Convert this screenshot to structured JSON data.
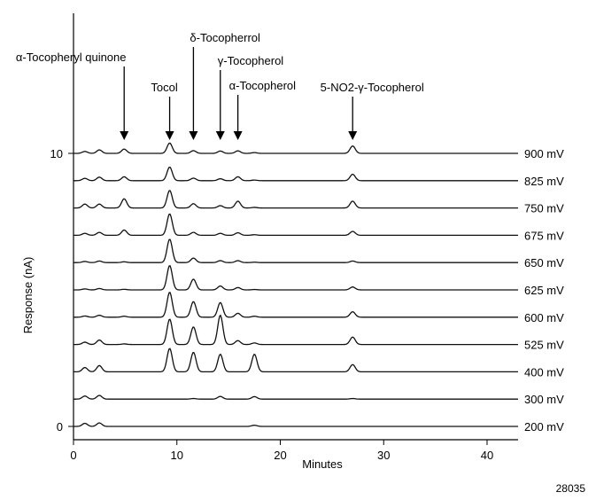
{
  "figure_id": "28035",
  "chart_data": {
    "type": "line",
    "xlabel": "Minutes",
    "ylabel": "Response (nA)",
    "xlim": [
      0,
      43
    ],
    "x_ticks": [
      0,
      10,
      20,
      30,
      40
    ],
    "y_tick_labels": [
      "10",
      "0"
    ],
    "grid": false,
    "traces": [
      {
        "name": "900 mV",
        "peaks": [
          [
            1.1,
            1.0
          ],
          [
            2.5,
            1.8
          ],
          [
            4.9,
            2.2
          ],
          [
            9.3,
            5.3
          ],
          [
            11.6,
            1.4
          ],
          [
            14.2,
            1.2
          ],
          [
            15.9,
            1.3
          ],
          [
            17.5,
            0.4
          ],
          [
            27.0,
            3.8
          ]
        ]
      },
      {
        "name": "825 mV",
        "peaks": [
          [
            1.1,
            1.2
          ],
          [
            2.5,
            1.8
          ],
          [
            4.9,
            2.0
          ],
          [
            9.3,
            7.0
          ],
          [
            11.6,
            1.3
          ],
          [
            14.2,
            1.0
          ],
          [
            15.9,
            2.0
          ],
          [
            17.5,
            0.3
          ],
          [
            27.0,
            3.3
          ]
        ]
      },
      {
        "name": "750 mV",
        "peaks": [
          [
            1.1,
            2.0
          ],
          [
            2.5,
            2.0
          ],
          [
            4.9,
            4.7
          ],
          [
            9.3,
            9.0
          ],
          [
            11.6,
            2.2
          ],
          [
            14.2,
            1.2
          ],
          [
            15.9,
            3.5
          ],
          [
            17.5,
            0.3
          ],
          [
            27.0,
            3.5
          ]
        ]
      },
      {
        "name": "675 mV",
        "peaks": [
          [
            1.1,
            1.0
          ],
          [
            2.5,
            1.5
          ],
          [
            4.9,
            2.7
          ],
          [
            9.3,
            11.0
          ],
          [
            11.6,
            1.5
          ],
          [
            14.2,
            1.0
          ],
          [
            15.9,
            1.3
          ],
          [
            17.5,
            0.3
          ],
          [
            27.0,
            2.0
          ]
        ]
      },
      {
        "name": "650 mV",
        "peaks": [
          [
            1.1,
            0.6
          ],
          [
            2.5,
            0.8
          ],
          [
            4.9,
            0.4
          ],
          [
            9.3,
            12.0
          ],
          [
            11.6,
            2.3
          ],
          [
            14.2,
            1.0
          ],
          [
            15.9,
            1.0
          ],
          [
            17.5,
            0.2
          ],
          [
            27.0,
            0.8
          ]
        ]
      },
      {
        "name": "625 mV",
        "peaks": [
          [
            1.1,
            0.5
          ],
          [
            2.5,
            0.7
          ],
          [
            4.9,
            0.3
          ],
          [
            9.3,
            12.5
          ],
          [
            11.6,
            5.5
          ],
          [
            14.2,
            2.0
          ],
          [
            15.9,
            1.2
          ],
          [
            17.5,
            0.2
          ],
          [
            27.0,
            1.5
          ]
        ]
      },
      {
        "name": "600 mV",
        "peaks": [
          [
            1.1,
            0.6
          ],
          [
            2.5,
            1.0
          ],
          [
            4.9,
            0.5
          ],
          [
            9.3,
            12.8
          ],
          [
            11.6,
            8.0
          ],
          [
            14.2,
            7.5
          ],
          [
            15.9,
            2.0
          ],
          [
            17.5,
            0.5
          ],
          [
            27.0,
            2.8
          ]
        ]
      },
      {
        "name": "525 mV",
        "peaks": [
          [
            1.1,
            1.2
          ],
          [
            2.5,
            2.3
          ],
          [
            4.9,
            0.3
          ],
          [
            9.3,
            13.0
          ],
          [
            11.6,
            9.0
          ],
          [
            14.2,
            15.0
          ],
          [
            15.9,
            2.0
          ],
          [
            17.5,
            0.8
          ],
          [
            27.0,
            3.8
          ]
        ]
      },
      {
        "name": "400 mV",
        "peaks": [
          [
            1.1,
            2.2
          ],
          [
            2.5,
            3.2
          ],
          [
            9.3,
            12.0
          ],
          [
            11.6,
            10.0
          ],
          [
            14.2,
            9.0
          ],
          [
            17.5,
            9.0
          ],
          [
            27.0,
            3.7
          ]
        ]
      },
      {
        "name": "300 mV",
        "peaks": [
          [
            1.1,
            1.6
          ],
          [
            2.5,
            1.9
          ],
          [
            11.6,
            0.3
          ],
          [
            14.2,
            1.4
          ],
          [
            17.5,
            1.3
          ],
          [
            27.0,
            0.3
          ]
        ]
      },
      {
        "name": "200 mV",
        "peaks": [
          [
            1.1,
            1.6
          ],
          [
            2.5,
            1.8
          ],
          [
            17.5,
            0.6
          ]
        ]
      }
    ],
    "annotations": [
      {
        "text": "α-Tocopheryl quinone",
        "x": 4.9
      },
      {
        "text": "Tocol",
        "x": 9.3
      },
      {
        "text": "δ-Tocopherrol",
        "x": 11.6
      },
      {
        "text": "γ-Tocopherol",
        "x": 14.2
      },
      {
        "text": "α-Tocopherol",
        "x": 15.9
      },
      {
        "text": "5-NO2-γ-Tocopherol",
        "x": 27.0
      }
    ]
  }
}
